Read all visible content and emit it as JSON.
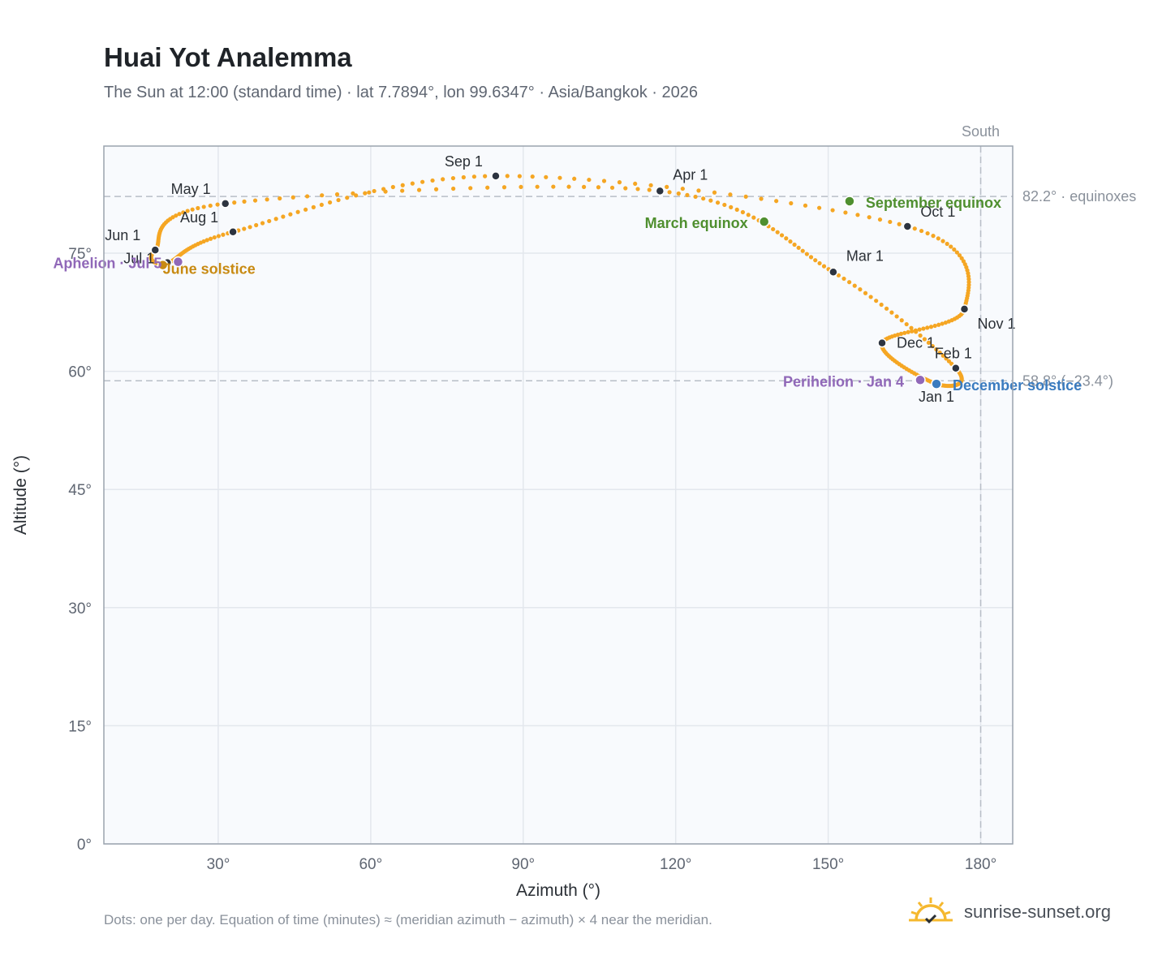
{
  "header": {
    "title": "Huai Yot Analemma",
    "subtitle": "The Sun at 12:00 (standard time) · lat 7.7894°, lon 99.6347° · Asia/Bangkok · 2026"
  },
  "footer": {
    "note": "Dots: one per day. Equation of time (minutes) ≈ (meridian azimuth − azimuth) × 4 near the meridian.",
    "brand": "sunrise-sunset.org"
  },
  "colors": {
    "curve": "#f5a623",
    "month_dot": "#2d3440",
    "equinox": "#4f8f2f",
    "june_solstice": "#c88a12",
    "december_solstice": "#3a7bbf",
    "apsis": "#9068b8",
    "plot_bg": "#f8fafd",
    "grid": "#e3e7ed",
    "ref_line": "#b8bec7"
  },
  "chart_data": {
    "type": "scatter",
    "title": "Huai Yot Analemma",
    "xlabel": "Azimuth (°)",
    "ylabel": "Altitude (°)",
    "xlim": [
      7.5,
      186.3
    ],
    "ylim": [
      0,
      88.6
    ],
    "x_ticks": [
      30,
      60,
      90,
      120,
      150,
      180
    ],
    "x_tick_labels": [
      "30°",
      "60°",
      "90°",
      "120°",
      "150°",
      "180°"
    ],
    "y_ticks": [
      0,
      15,
      30,
      45,
      60,
      75
    ],
    "y_tick_labels": [
      "0°",
      "15°",
      "30°",
      "45°",
      "60°",
      "75°"
    ],
    "grid": true,
    "meridian": {
      "azimuth": 180,
      "label": "South"
    },
    "reference_lines": [
      {
        "altitude": 82.2,
        "label": "82.2° · equinoxes"
      },
      {
        "altitude": 58.8,
        "label": "58.8° (−23.4°)"
      }
    ],
    "month_markers": [
      {
        "label": "Jan 1",
        "azimuth": 171.3,
        "altitude": 58.4
      },
      {
        "label": "Feb 1",
        "azimuth": 175.1,
        "altitude": 60.4
      },
      {
        "label": "Mar 1",
        "azimuth": 151.0,
        "altitude": 72.6
      },
      {
        "label": "Apr 1",
        "azimuth": 116.9,
        "altitude": 82.9
      },
      {
        "label": "May 1",
        "azimuth": 31.4,
        "altitude": 81.3
      },
      {
        "label": "Jun 1",
        "azimuth": 17.6,
        "altitude": 75.4
      },
      {
        "label": "Jul 1",
        "azimuth": 20.0,
        "altitude": 73.8
      },
      {
        "label": "Aug 1",
        "azimuth": 32.9,
        "altitude": 77.7
      },
      {
        "label": "Sep 1",
        "azimuth": 84.6,
        "altitude": 84.8
      },
      {
        "label": "Oct 1",
        "azimuth": 165.6,
        "altitude": 78.4
      },
      {
        "label": "Nov 1",
        "azimuth": 176.8,
        "altitude": 67.9
      },
      {
        "label": "Dec 1",
        "azimuth": 160.6,
        "altitude": 63.6
      }
    ],
    "events": [
      {
        "label": "March equinox",
        "azimuth": 137.4,
        "altitude": 79.0,
        "kind": "equinox"
      },
      {
        "label": "September equinox",
        "azimuth": 154.2,
        "altitude": 81.6,
        "kind": "equinox"
      },
      {
        "label": "June solstice",
        "azimuth": 19.1,
        "altitude": 73.5,
        "kind": "june_solstice"
      },
      {
        "label": "December solstice",
        "azimuth": 171.3,
        "altitude": 58.4,
        "kind": "december_solstice"
      },
      {
        "label": "Perihelion · Jan 4",
        "azimuth": 168.1,
        "altitude": 58.9,
        "kind": "apsis"
      },
      {
        "label": "Aphelion · Jul 5",
        "azimuth": 22.1,
        "altitude": 73.9,
        "kind": "apsis"
      }
    ]
  }
}
